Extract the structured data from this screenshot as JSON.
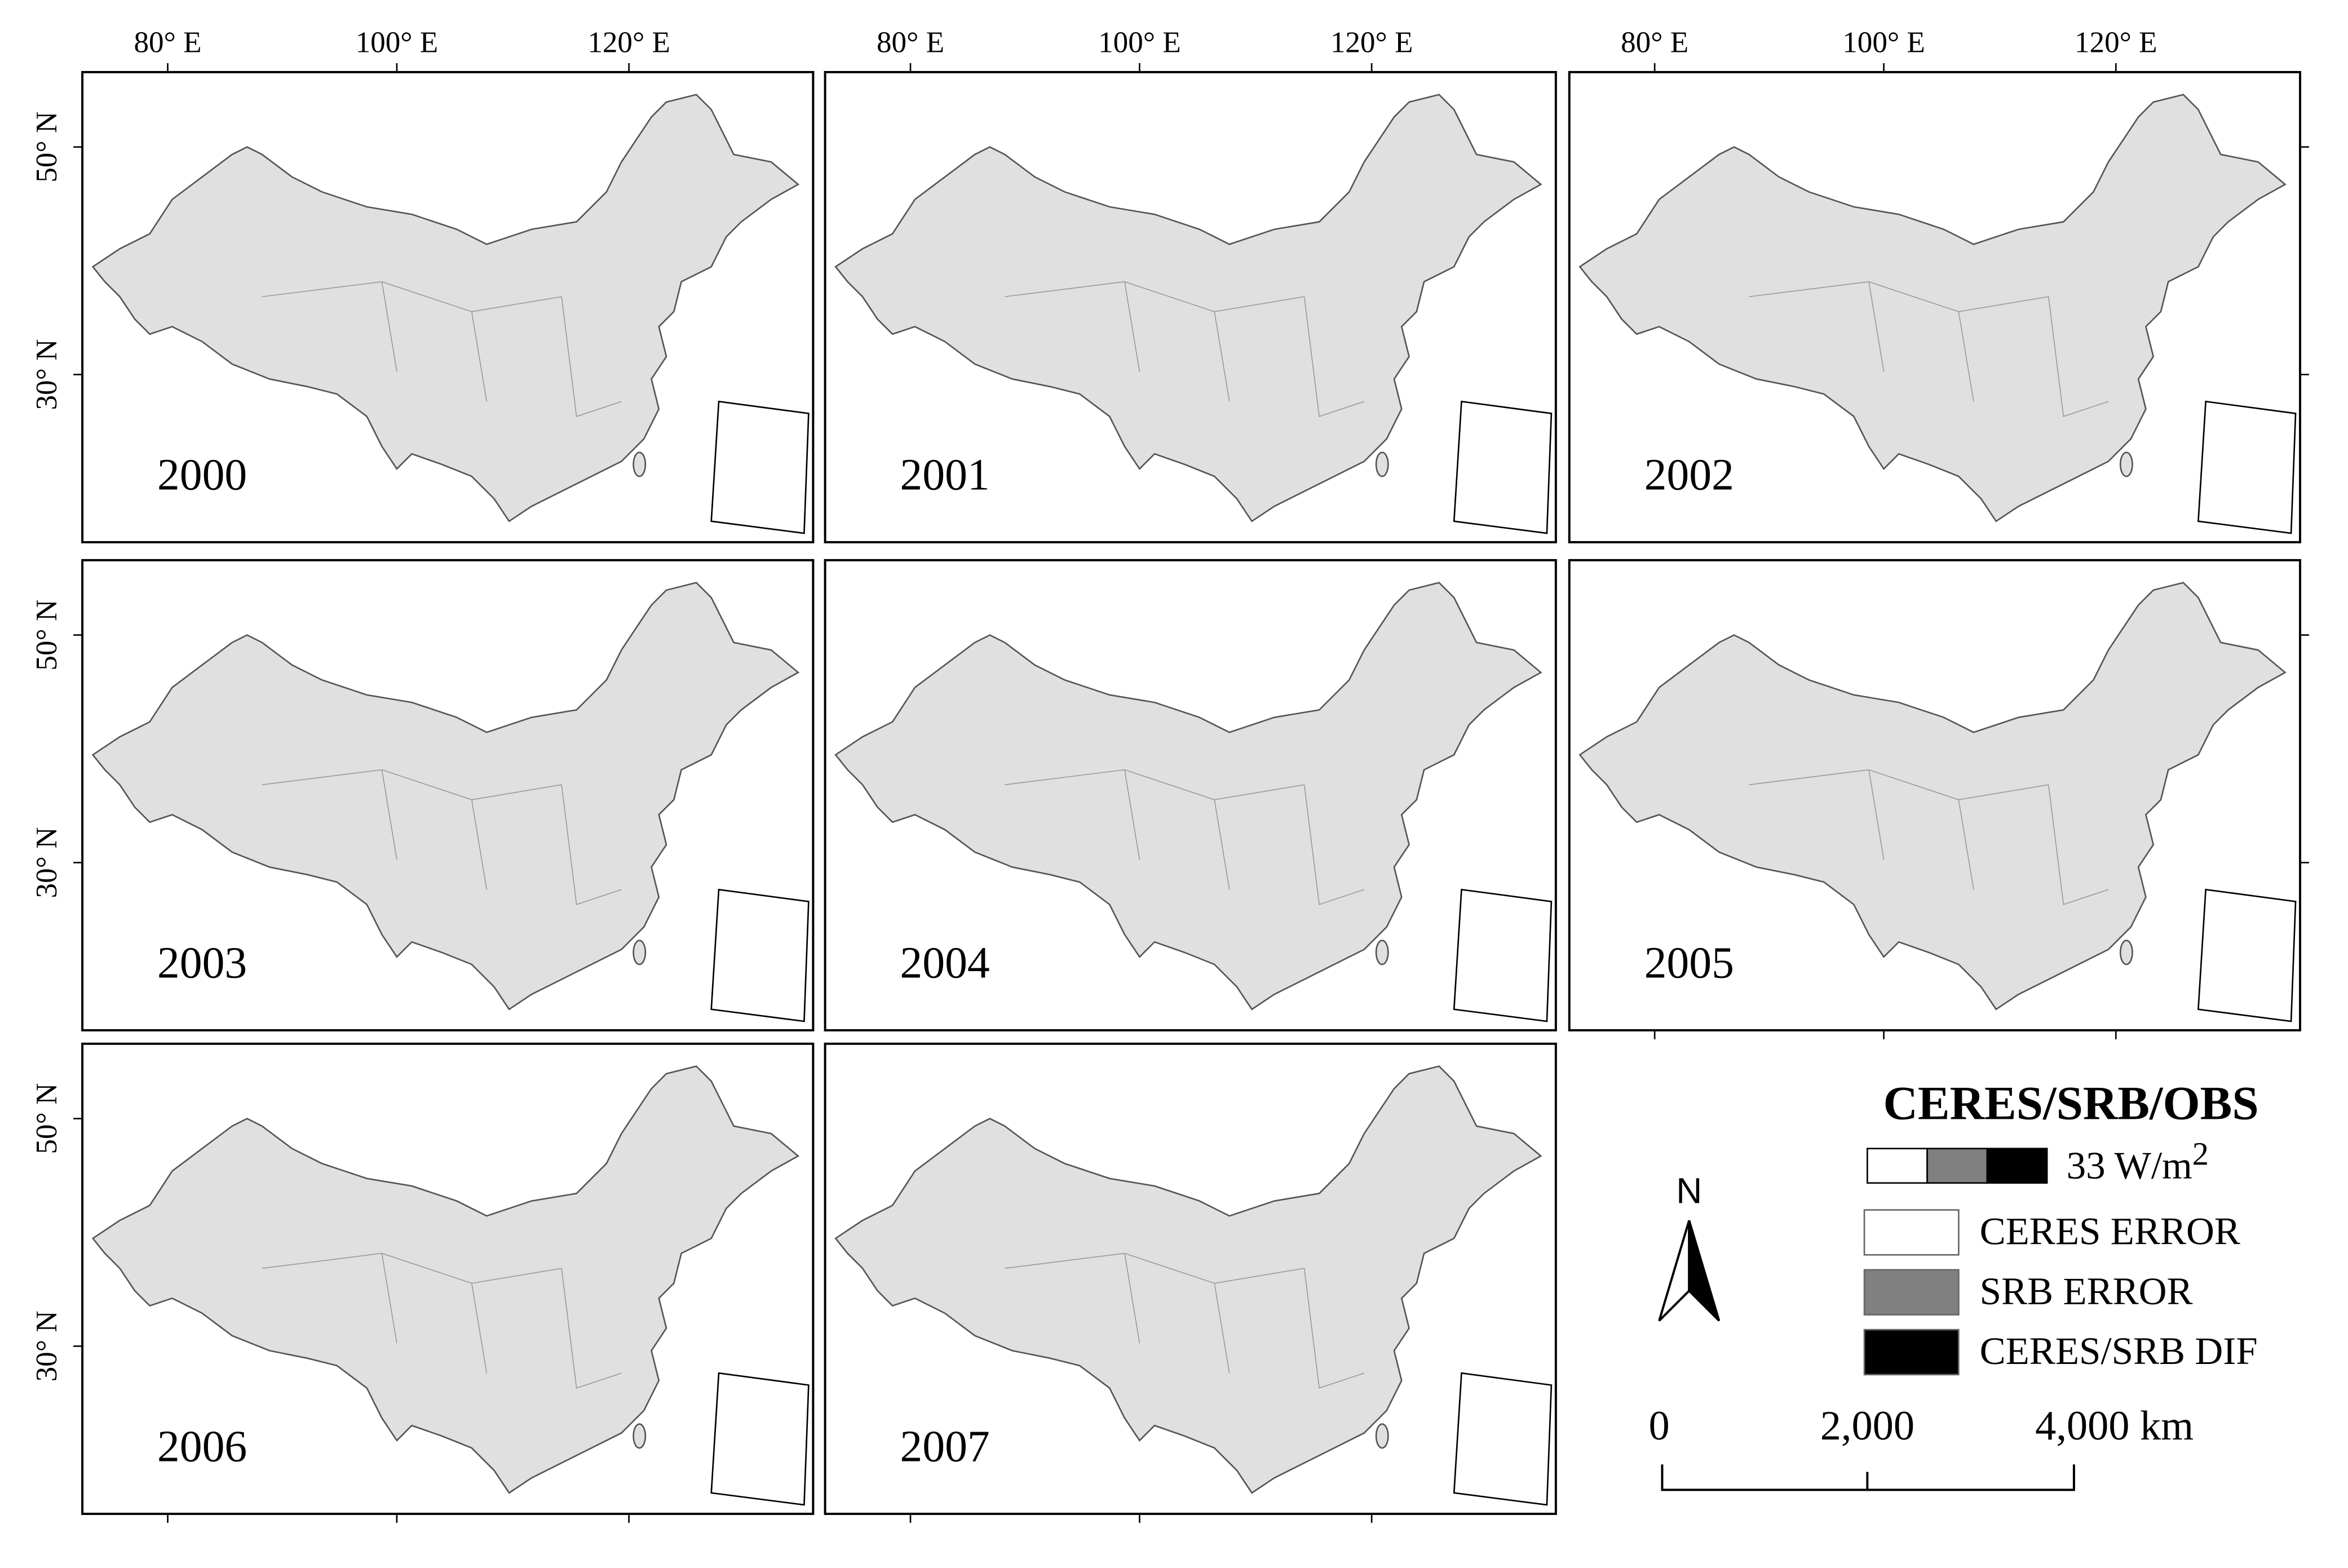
{
  "panels": [
    {
      "year": "2000"
    },
    {
      "year": "2001"
    },
    {
      "year": "2002"
    },
    {
      "year": "2003"
    },
    {
      "year": "2004"
    },
    {
      "year": "2005"
    },
    {
      "year": "2006"
    },
    {
      "year": "2007"
    }
  ],
  "lon_labels": [
    "80° E",
    "100° E",
    "120° E"
  ],
  "lat_labels": [
    "50° N",
    "30° N"
  ],
  "legend": {
    "title": "CERES/SRB/OBS",
    "unit": "33 W/m",
    "unit_sup": "2",
    "items": [
      {
        "label": "CERES ERROR",
        "color": "#ffffff"
      },
      {
        "label": "SRB ERROR",
        "color": "#808080"
      },
      {
        "label": "CERES/SRB DIF",
        "color": "#000000"
      }
    ]
  },
  "north": "N",
  "scale_labels": [
    "0",
    "2,000",
    "4,000 km"
  ]
}
